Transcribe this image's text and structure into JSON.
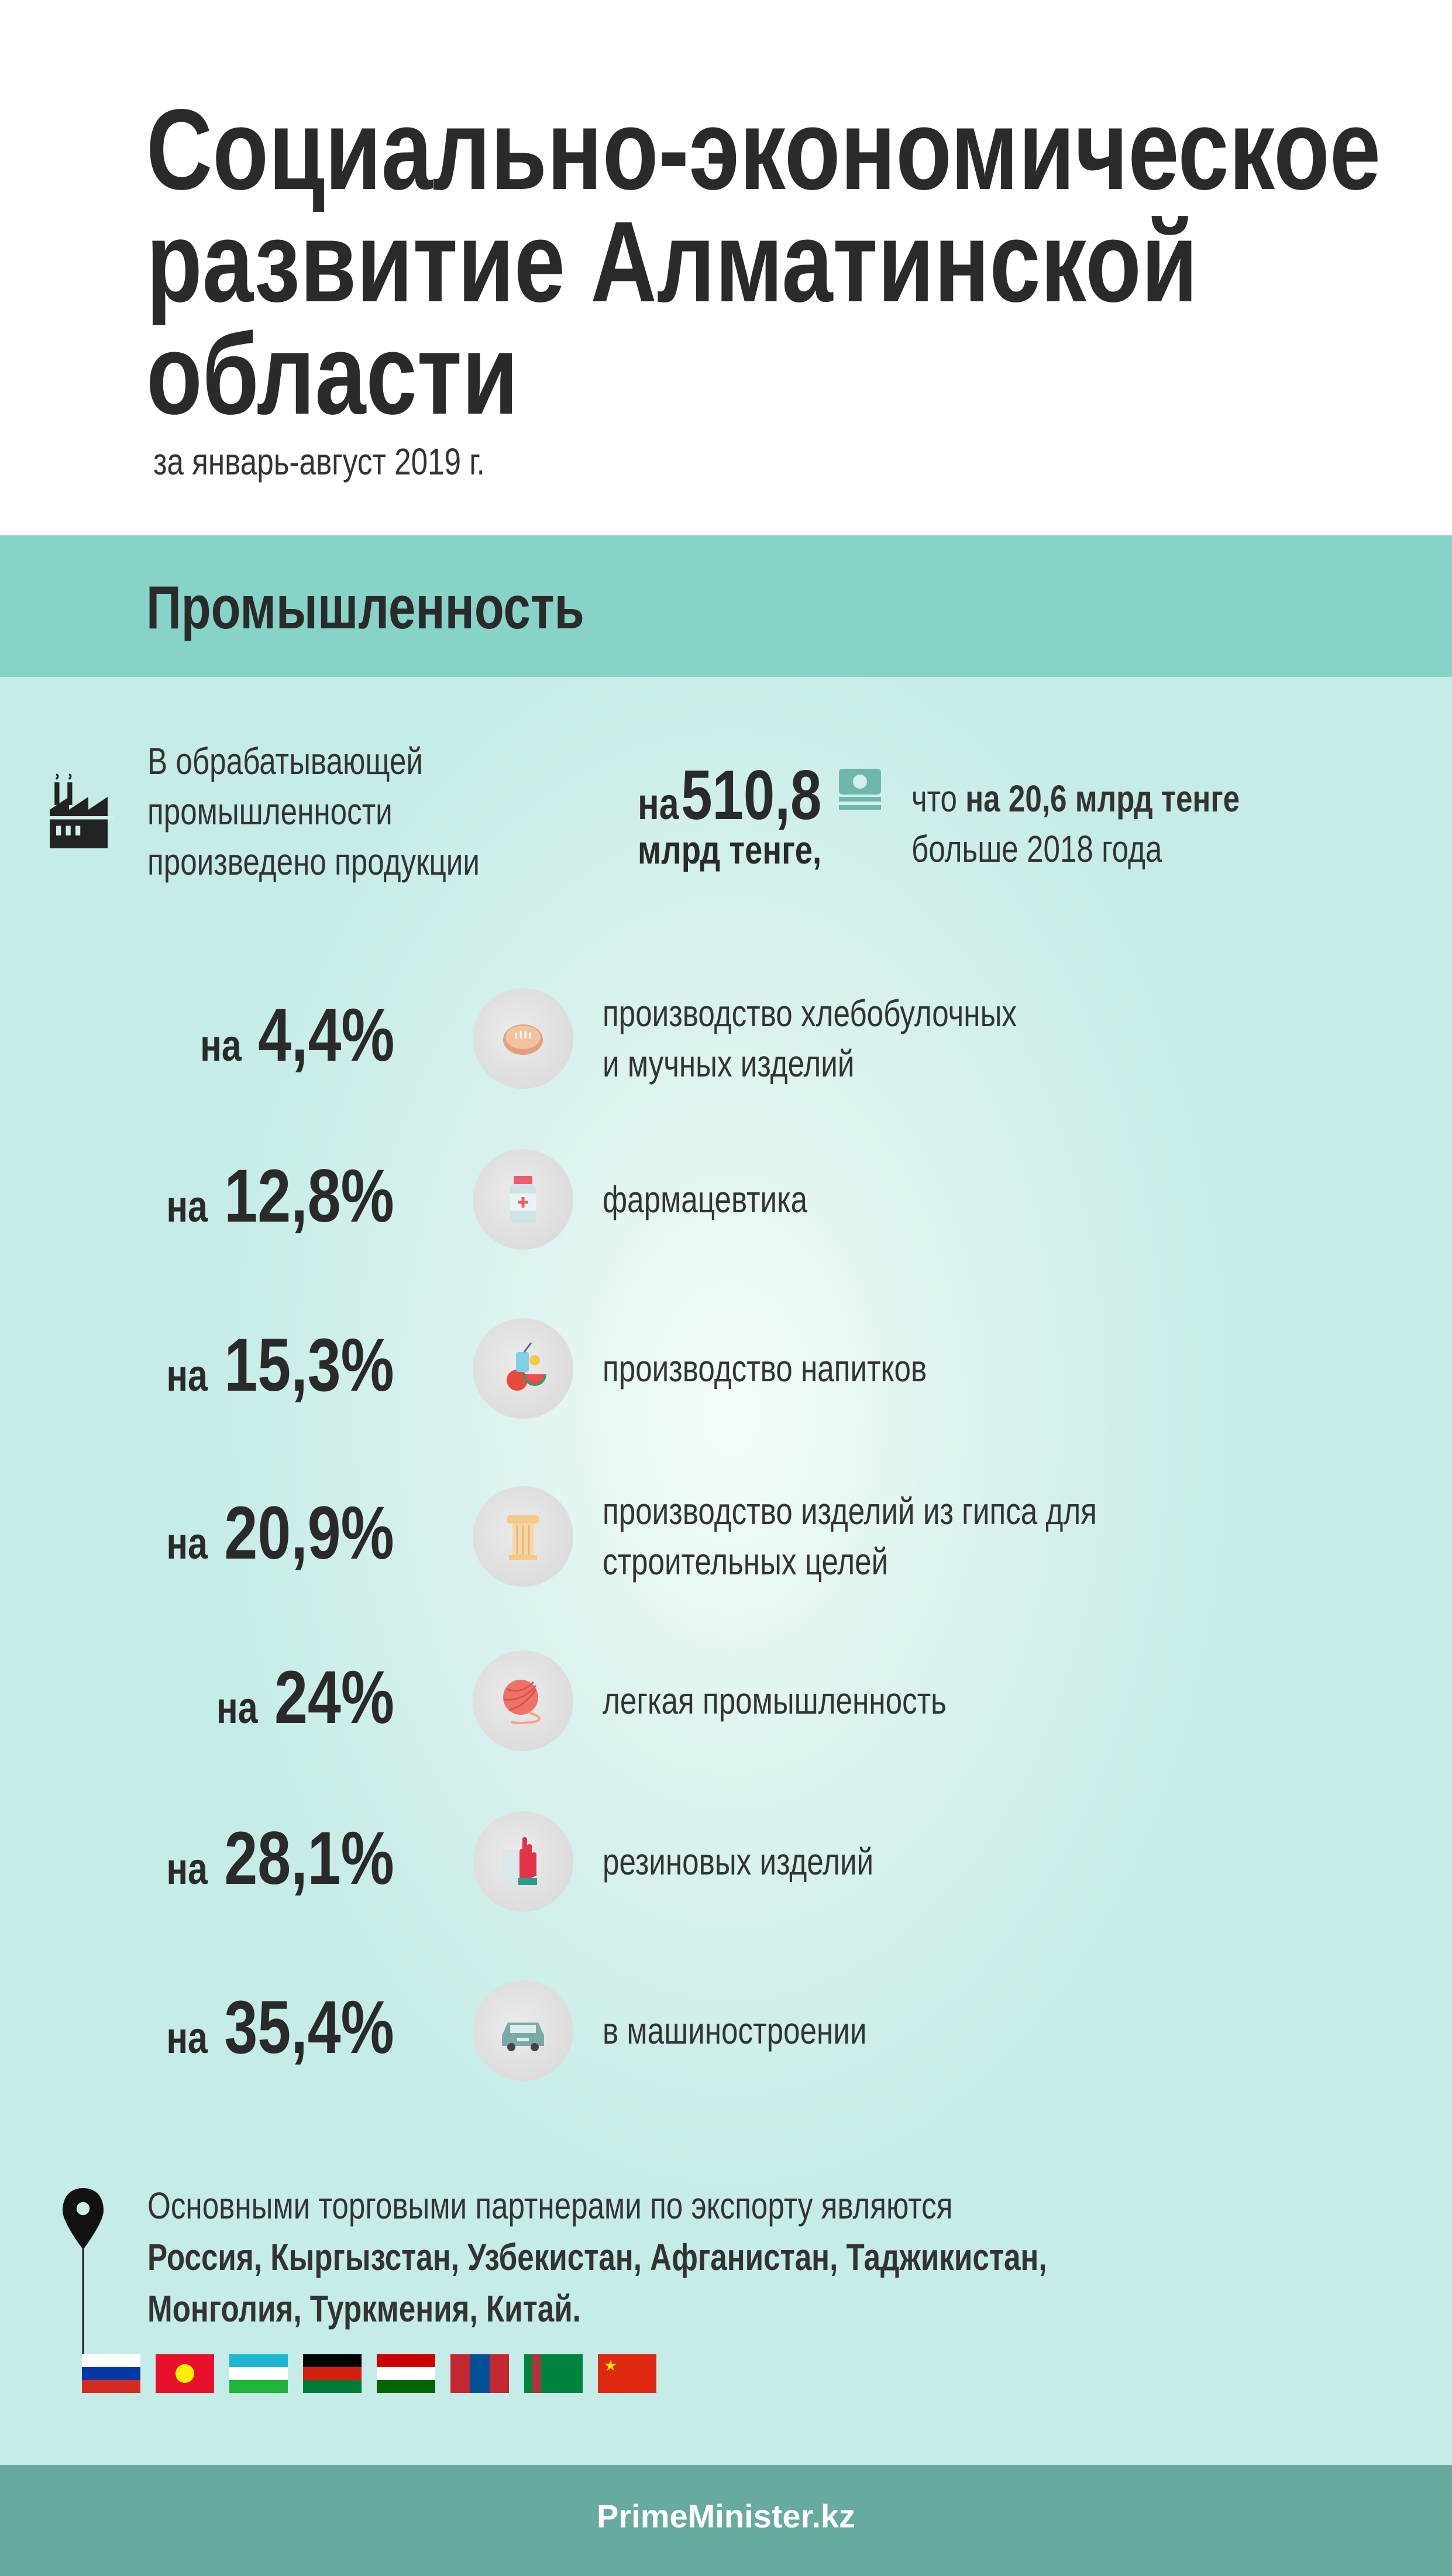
{
  "header": {
    "title_lines": [
      "Социально-экономическое",
      "развитие Алматинской",
      "области"
    ],
    "subtitle": "за январь-август 2019 г."
  },
  "section": {
    "title": "Промышленность"
  },
  "summary": {
    "lines": [
      "В обрабатывающей",
      "промышленности",
      "произведено продукции"
    ],
    "value_prefix": "на",
    "value": "510,8",
    "value_unit": "млрд тенге,",
    "growth_prefix": "что",
    "growth_value": "на 20,6 млрд тенге",
    "growth_suffix": "больше 2018 года",
    "icon": "factory-icon",
    "money_icon": "money-stack-icon"
  },
  "rows": [
    {
      "prefix": "на",
      "value": "4,4%",
      "label_lines": [
        "производство хлебобулочных",
        "и мучных изделий"
      ],
      "icon": "bread-icon"
    },
    {
      "prefix": "на",
      "value": "12,8%",
      "label_lines": [
        "фармацевтика"
      ],
      "icon": "medicine-bottle-icon"
    },
    {
      "prefix": "на",
      "value": "15,3%",
      "label_lines": [
        "производство напитков"
      ],
      "icon": "drink-fruit-icon"
    },
    {
      "prefix": "на",
      "value": "20,9%",
      "label_lines": [
        "производство изделий из гипса для",
        "строительных целей"
      ],
      "icon": "column-icon"
    },
    {
      "prefix": "на",
      "value": "24%",
      "label_lines": [
        "легкая промышленность"
      ],
      "icon": "yarn-icon"
    },
    {
      "prefix": "на",
      "value": "28,1%",
      "label_lines": [
        "резиновых изделий"
      ],
      "icon": "rubber-glove-icon"
    },
    {
      "prefix": "на",
      "value": "35,4%",
      "label_lines": [
        "в машиностроении"
      ],
      "icon": "car-icon"
    }
  ],
  "partners": {
    "intro": "Основными торговыми партнерами по экспорту являются",
    "lines": [
      "Россия, Кыргызстан, Узбекистан, Афганистан, Таджикистан,",
      "Монголия, Туркмения, Китай."
    ],
    "flags": [
      "russia",
      "kyrgyzstan",
      "uzbekistan",
      "afghanistan",
      "tajikistan",
      "mongolia",
      "turkmenistan",
      "china"
    ]
  },
  "footer": {
    "site": "PrimeMinister.kz"
  },
  "colors": {
    "band": "#88d3c7",
    "footer": "#67aaa0",
    "text": "#2a2a2a"
  }
}
